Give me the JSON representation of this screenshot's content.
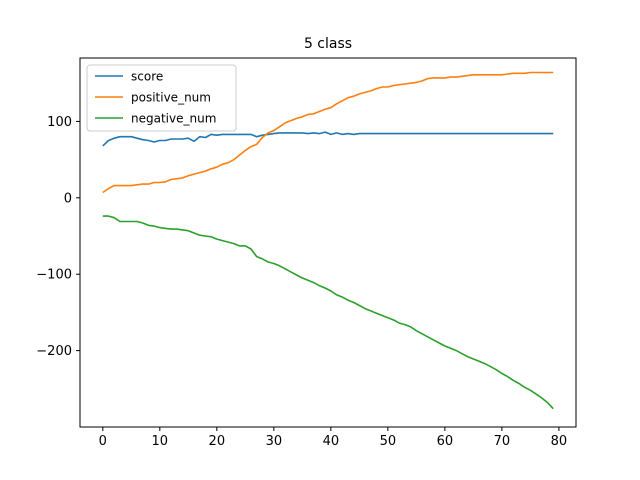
{
  "chart_data": {
    "type": "line",
    "title": "5 class",
    "xlabel": "",
    "ylabel": "",
    "xlim": [
      -4,
      83
    ],
    "ylim": [
      -300,
      183
    ],
    "xticks": [
      0,
      10,
      20,
      30,
      40,
      50,
      60,
      70,
      80
    ],
    "yticks": [
      -200,
      -100,
      0,
      100
    ],
    "xtick_labels": [
      "0",
      "10",
      "20",
      "30",
      "40",
      "50",
      "60",
      "70",
      "80"
    ],
    "ytick_labels": [
      "−200",
      "−100",
      "0",
      "100"
    ],
    "grid": false,
    "legend_position": "top-left",
    "series": [
      {
        "name": "score",
        "color": "#1f77b4",
        "x": [
          0,
          1,
          2,
          3,
          4,
          5,
          6,
          7,
          8,
          9,
          10,
          11,
          12,
          13,
          14,
          15,
          16,
          17,
          18,
          19,
          20,
          21,
          22,
          23,
          24,
          25,
          26,
          27,
          28,
          29,
          30,
          31,
          32,
          33,
          34,
          35,
          36,
          37,
          38,
          39,
          40,
          41,
          42,
          43,
          44,
          45,
          46,
          47,
          48,
          49,
          50,
          51,
          52,
          53,
          54,
          55,
          56,
          57,
          58,
          59,
          60,
          61,
          62,
          63,
          64,
          65,
          66,
          67,
          68,
          69,
          70,
          71,
          72,
          73,
          74,
          75,
          76,
          77,
          78,
          79
        ],
        "y": [
          68,
          75,
          78,
          80,
          80,
          80,
          78,
          76,
          75,
          73,
          75,
          75,
          77,
          77,
          77,
          78,
          74,
          80,
          79,
          83,
          82,
          83,
          83,
          83,
          83,
          83,
          83,
          80,
          82,
          83,
          84,
          85,
          85,
          85,
          85,
          85,
          84,
          85,
          84,
          86,
          83,
          85,
          83,
          84,
          83,
          84,
          84,
          84,
          84,
          84,
          84,
          84,
          84,
          84,
          84,
          84,
          84,
          84,
          84,
          84,
          84,
          84,
          84,
          84,
          84,
          84,
          84,
          84,
          84,
          84,
          84,
          84,
          84,
          84,
          84,
          84,
          84,
          84,
          84,
          84
        ]
      },
      {
        "name": "positive_num",
        "color": "#ff7f0e",
        "x": [
          0,
          1,
          2,
          3,
          4,
          5,
          6,
          7,
          8,
          9,
          10,
          11,
          12,
          13,
          14,
          15,
          16,
          17,
          18,
          19,
          20,
          21,
          22,
          23,
          24,
          25,
          26,
          27,
          28,
          29,
          30,
          31,
          32,
          33,
          34,
          35,
          36,
          37,
          38,
          39,
          40,
          41,
          42,
          43,
          44,
          45,
          46,
          47,
          48,
          49,
          50,
          51,
          52,
          53,
          54,
          55,
          56,
          57,
          58,
          59,
          60,
          61,
          62,
          63,
          64,
          65,
          66,
          67,
          68,
          69,
          70,
          71,
          72,
          73,
          74,
          75,
          76,
          77,
          78,
          79
        ],
        "y": [
          7,
          12,
          16,
          16,
          16,
          16,
          17,
          18,
          18,
          20,
          20,
          21,
          24,
          25,
          26,
          29,
          31,
          33,
          35,
          38,
          40,
          44,
          46,
          50,
          56,
          62,
          67,
          70,
          79,
          85,
          88,
          93,
          98,
          101,
          104,
          106,
          109,
          110,
          113,
          116,
          118,
          123,
          127,
          131,
          133,
          136,
          138,
          140,
          143,
          145,
          145,
          147,
          148,
          149,
          150,
          151,
          153,
          156,
          157,
          157,
          157,
          158,
          158,
          159,
          160,
          161,
          161,
          161,
          161,
          161,
          161,
          162,
          163,
          163,
          163,
          164,
          164,
          164,
          164,
          164
        ]
      },
      {
        "name": "negative_num",
        "color": "#2ca02c",
        "x": [
          0,
          1,
          2,
          3,
          4,
          5,
          6,
          7,
          8,
          9,
          10,
          11,
          12,
          13,
          14,
          15,
          16,
          17,
          18,
          19,
          20,
          21,
          22,
          23,
          24,
          25,
          26,
          27,
          28,
          29,
          30,
          31,
          32,
          33,
          34,
          35,
          36,
          37,
          38,
          39,
          40,
          41,
          42,
          43,
          44,
          45,
          46,
          47,
          48,
          49,
          50,
          51,
          52,
          53,
          54,
          55,
          56,
          57,
          58,
          59,
          60,
          61,
          62,
          63,
          64,
          65,
          66,
          67,
          68,
          69,
          70,
          71,
          72,
          73,
          74,
          75,
          76,
          77,
          78,
          79
        ],
        "y": [
          -24,
          -24,
          -26,
          -31,
          -31,
          -31,
          -31,
          -33,
          -36,
          -37,
          -39,
          -40,
          -41,
          -41,
          -42,
          -43,
          -46,
          -49,
          -50,
          -51,
          -54,
          -56,
          -58,
          -60,
          -63,
          -63,
          -67,
          -77,
          -80,
          -84,
          -86,
          -89,
          -93,
          -97,
          -101,
          -105,
          -108,
          -111,
          -115,
          -118,
          -122,
          -127,
          -130,
          -134,
          -137,
          -141,
          -145,
          -148,
          -151,
          -154,
          -157,
          -160,
          -164,
          -166,
          -169,
          -174,
          -178,
          -182,
          -186,
          -190,
          -194,
          -197,
          -200,
          -204,
          -208,
          -211,
          -214,
          -217,
          -221,
          -225,
          -230,
          -234,
          -239,
          -243,
          -248,
          -252,
          -257,
          -262,
          -268,
          -276
        ]
      }
    ]
  }
}
